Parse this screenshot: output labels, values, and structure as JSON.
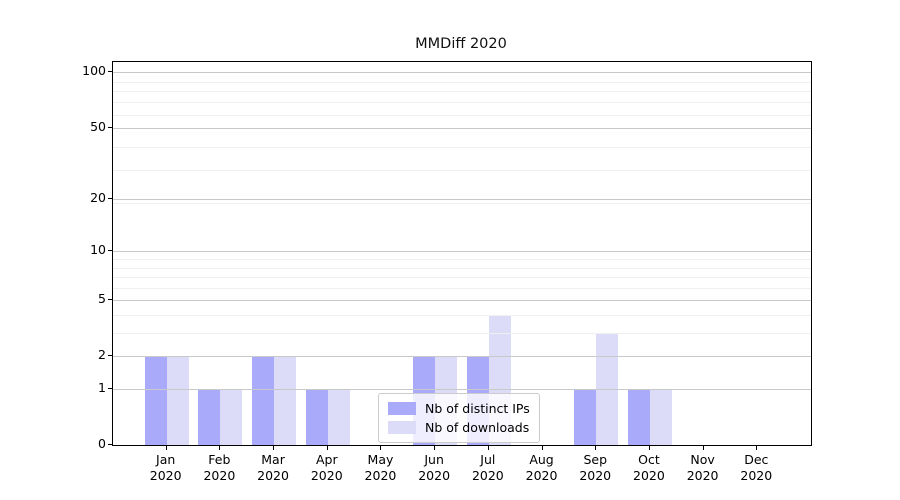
{
  "chart_data": {
    "type": "bar",
    "title": "MMDiff 2020",
    "categories": [
      "Jan",
      "Feb",
      "Mar",
      "Apr",
      "May",
      "Jun",
      "Jul",
      "Aug",
      "Sep",
      "Oct",
      "Nov",
      "Dec"
    ],
    "category_year": "2020",
    "series": [
      {
        "name": "Nb of distinct IPs",
        "color": "#aaaafa",
        "values": [
          2,
          1,
          2,
          1,
          0,
          2,
          2,
          0,
          1,
          1,
          0,
          0
        ]
      },
      {
        "name": "Nb of downloads",
        "color": "#dcdcf9",
        "values": [
          2,
          1,
          2,
          1,
          0,
          2,
          4,
          0,
          3,
          1,
          0,
          0
        ]
      }
    ],
    "y_axis": {
      "scale": "log1p",
      "ticks": [
        0,
        1,
        2,
        5,
        10,
        20,
        50,
        100
      ],
      "minor_ticks": [
        3,
        4,
        6,
        7,
        8,
        9,
        19,
        29,
        39,
        59,
        69,
        79,
        89
      ],
      "top_value": 114
    },
    "x_axis": {
      "label_lines": 2
    },
    "legend": {
      "position": "lower-center"
    },
    "grid": {
      "major_color": "#c9c9c9",
      "minor_color": "#efefef"
    }
  }
}
